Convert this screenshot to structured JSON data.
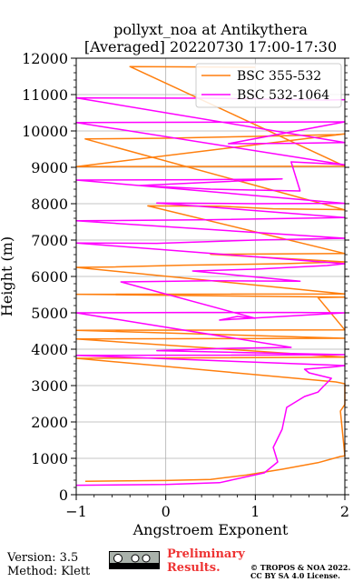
{
  "chart_data": {
    "type": "line",
    "title": "pollyxt_noa at Antikythera",
    "subtitle": "[Averaged] 20220730 17:00-17:30",
    "xlabel": "Angstroem Exponent",
    "ylabel": "Height (m)",
    "xlim": [
      -1,
      2
    ],
    "ylim": [
      0,
      12000
    ],
    "x_ticks": [
      -1,
      0,
      1,
      2
    ],
    "y_ticks": [
      0,
      1000,
      2000,
      3000,
      4000,
      5000,
      6000,
      7000,
      8000,
      9000,
      10000,
      11000,
      12000
    ],
    "grid": true,
    "legend_position": "top-right",
    "series": [
      {
        "name": "BSC 355-532",
        "color": "#ff7f0e",
        "points": [
          [
            -0.9,
            370
          ],
          [
            0.0,
            390
          ],
          [
            0.5,
            420
          ],
          [
            0.9,
            540
          ],
          [
            1.3,
            700
          ],
          [
            1.7,
            880
          ],
          [
            1.95,
            1050
          ],
          [
            2.0,
            1070
          ],
          [
            1.95,
            2300
          ],
          [
            2.0,
            2480
          ],
          [
            2.0,
            3050
          ],
          [
            1.9,
            3100
          ],
          [
            -1.0,
            3750
          ],
          [
            0.1,
            3760
          ],
          [
            1.0,
            3770
          ],
          [
            2.0,
            3780
          ],
          [
            -1.0,
            4280
          ],
          [
            0.5,
            4290
          ],
          [
            2.0,
            4300
          ],
          [
            -1.0,
            4520
          ],
          [
            2.0,
            4530
          ],
          [
            1.7,
            5420
          ],
          [
            2.0,
            5430
          ],
          [
            -1.0,
            5510
          ],
          [
            2.0,
            5520
          ],
          [
            -1.0,
            6250
          ],
          [
            -0.6,
            6260
          ],
          [
            0.2,
            6310
          ],
          [
            1.3,
            6350
          ],
          [
            2.0,
            6400
          ],
          [
            0.5,
            6610
          ],
          [
            1.2,
            6620
          ],
          [
            2.0,
            6630
          ],
          [
            -0.2,
            7940
          ],
          [
            0.6,
            7930
          ],
          [
            1.2,
            7860
          ],
          [
            1.9,
            7840
          ],
          [
            2.0,
            7830
          ],
          [
            -0.9,
            9780
          ],
          [
            0.0,
            9800
          ],
          [
            1.0,
            9850
          ],
          [
            1.9,
            9900
          ],
          [
            2.0,
            9920
          ],
          [
            -1.0,
            9020
          ],
          [
            2.0,
            9030
          ],
          [
            -0.4,
            11770
          ],
          [
            0.4,
            11760
          ],
          [
            1.0,
            11750
          ]
        ]
      },
      {
        "name": "BSC 532-1064",
        "color": "#ff00ff",
        "points": [
          [
            -1.0,
            260
          ],
          [
            0.0,
            280
          ],
          [
            0.6,
            330
          ],
          [
            1.1,
            600
          ],
          [
            1.25,
            900
          ],
          [
            1.2,
            1300
          ],
          [
            1.3,
            1800
          ],
          [
            1.35,
            2400
          ],
          [
            1.55,
            2700
          ],
          [
            1.7,
            2820
          ],
          [
            1.75,
            2950
          ],
          [
            1.85,
            3200
          ],
          [
            1.6,
            3350
          ],
          [
            1.55,
            3450
          ],
          [
            1.9,
            3520
          ],
          [
            2.0,
            3550
          ],
          [
            -1.0,
            3830
          ],
          [
            1.0,
            3840
          ],
          [
            2.0,
            3850
          ],
          [
            -0.1,
            3960
          ],
          [
            0.6,
            4020
          ],
          [
            1.4,
            4050
          ],
          [
            -1.0,
            5000
          ],
          [
            0.3,
            5010
          ],
          [
            1.5,
            5010
          ],
          [
            2.0,
            5000
          ],
          [
            0.6,
            4800
          ],
          [
            0.8,
            4900
          ],
          [
            1.0,
            4850
          ],
          [
            -0.5,
            5850
          ],
          [
            0.5,
            5880
          ],
          [
            1.5,
            5870
          ],
          [
            0.3,
            6150
          ],
          [
            1.0,
            6200
          ],
          [
            1.8,
            6300
          ],
          [
            2.0,
            6350
          ],
          [
            -1.0,
            6920
          ],
          [
            -0.1,
            6910
          ],
          [
            1.0,
            7000
          ],
          [
            2.0,
            7050
          ],
          [
            -1.0,
            7530
          ],
          [
            0.5,
            7560
          ],
          [
            2.0,
            7620
          ],
          [
            -0.1,
            8020
          ],
          [
            1.0,
            8000
          ],
          [
            2.0,
            8010
          ],
          [
            -1.0,
            8650
          ],
          [
            0.4,
            8660
          ],
          [
            1.3,
            8680
          ],
          [
            -0.3,
            8500
          ],
          [
            0.5,
            8400
          ],
          [
            1.5,
            8350
          ],
          [
            1.4,
            9150
          ],
          [
            1.8,
            9100
          ],
          [
            2.0,
            9070
          ],
          [
            -1.0,
            10230
          ],
          [
            0.5,
            10240
          ],
          [
            2.0,
            10250
          ],
          [
            0.7,
            9650
          ],
          [
            1.4,
            9660
          ],
          [
            2.0,
            9680
          ],
          [
            -1.0,
            10910
          ],
          [
            0.5,
            10900
          ],
          [
            1.8,
            10850
          ],
          [
            2.0,
            10860
          ]
        ]
      }
    ]
  },
  "footer": {
    "version": "Version: 3.5",
    "method": "Method: Klett",
    "preliminary_1": "Preliminary",
    "preliminary_2": "Results.",
    "credit_1": "© TROPOS & NOA 2022.",
    "credit_2": "CC BY SA 4.0 License."
  }
}
